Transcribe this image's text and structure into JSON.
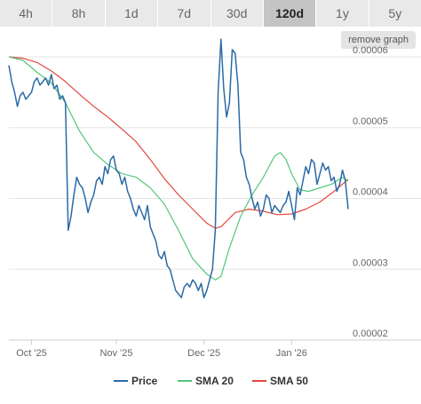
{
  "tabs": [
    {
      "label": "4h",
      "active": false
    },
    {
      "label": "8h",
      "active": false
    },
    {
      "label": "1d",
      "active": false
    },
    {
      "label": "7d",
      "active": false
    },
    {
      "label": "30d",
      "active": false
    },
    {
      "label": "120d",
      "active": true
    },
    {
      "label": "1y",
      "active": false
    },
    {
      "label": "5y",
      "active": false
    }
  ],
  "remove_graph_label": "remove graph",
  "colors": {
    "price": "#2b6aa6",
    "sma20": "#53c77a",
    "sma50": "#e2483f"
  },
  "chart_data": {
    "type": "line",
    "x_ticks": [
      "Oct '25",
      "Nov '25",
      "Dec '25",
      "Jan '26"
    ],
    "y_ticks": [
      "0.00006",
      "0.00005",
      "0.00004",
      "0.00003",
      "0.00002"
    ],
    "ylim": [
      2e-05,
      6e-05
    ],
    "grid": true,
    "legend": "bottom",
    "x_range": [
      0,
      120
    ],
    "x_tick_positions": [
      8,
      38,
      69,
      100
    ],
    "series": [
      {
        "name": "Price",
        "color": "#2b6aa6",
        "points": [
          [
            0,
            5.88e-05
          ],
          [
            1,
            5.65e-05
          ],
          [
            2,
            5.5e-05
          ],
          [
            3,
            5.3e-05
          ],
          [
            4,
            5.45e-05
          ],
          [
            5,
            5.5e-05
          ],
          [
            6,
            5.4e-05
          ],
          [
            7,
            5.45e-05
          ],
          [
            8,
            5.5e-05
          ],
          [
            9,
            5.65e-05
          ],
          [
            10,
            5.7e-05
          ],
          [
            11,
            5.6e-05
          ],
          [
            12,
            5.65e-05
          ],
          [
            13,
            5.7e-05
          ],
          [
            14,
            5.6e-05
          ],
          [
            15,
            5.75e-05
          ],
          [
            16,
            5.55e-05
          ],
          [
            17,
            5.6e-05
          ],
          [
            18,
            5.4e-05
          ],
          [
            19,
            5.45e-05
          ],
          [
            20,
            5.35e-05
          ],
          [
            21,
            3.55e-05
          ],
          [
            22,
            3.75e-05
          ],
          [
            23,
            4.05e-05
          ],
          [
            24,
            4.3e-05
          ],
          [
            25,
            4.2e-05
          ],
          [
            26,
            4.15e-05
          ],
          [
            27,
            4e-05
          ],
          [
            28,
            3.8e-05
          ],
          [
            29,
            3.95e-05
          ],
          [
            30,
            4.05e-05
          ],
          [
            31,
            4.25e-05
          ],
          [
            32,
            4.3e-05
          ],
          [
            33,
            4.2e-05
          ],
          [
            34,
            4.45e-05
          ],
          [
            35,
            4.35e-05
          ],
          [
            36,
            4.55e-05
          ],
          [
            37,
            4.6e-05
          ],
          [
            38,
            4.4e-05
          ],
          [
            39,
            4.35e-05
          ],
          [
            40,
            4.2e-05
          ],
          [
            41,
            4.3e-05
          ],
          [
            42,
            4.1e-05
          ],
          [
            43,
            4e-05
          ],
          [
            44,
            3.85e-05
          ],
          [
            45,
            3.75e-05
          ],
          [
            46,
            3.9e-05
          ],
          [
            47,
            3.8e-05
          ],
          [
            48,
            3.7e-05
          ],
          [
            49,
            3.9e-05
          ],
          [
            50,
            3.6e-05
          ],
          [
            51,
            3.5e-05
          ],
          [
            52,
            3.4e-05
          ],
          [
            53,
            3.2e-05
          ],
          [
            54,
            3.15e-05
          ],
          [
            55,
            3.25e-05
          ],
          [
            56,
            3.05e-05
          ],
          [
            57,
            3e-05
          ],
          [
            58,
            2.85e-05
          ],
          [
            59,
            2.7e-05
          ],
          [
            60,
            2.65e-05
          ],
          [
            61,
            2.6e-05
          ],
          [
            62,
            2.75e-05
          ],
          [
            63,
            2.8e-05
          ],
          [
            64,
            2.75e-05
          ],
          [
            65,
            2.85e-05
          ],
          [
            66,
            2.8e-05
          ],
          [
            67,
            2.7e-05
          ],
          [
            68,
            2.8e-05
          ],
          [
            69,
            2.6e-05
          ],
          [
            70,
            2.7e-05
          ],
          [
            71,
            2.85e-05
          ],
          [
            72,
            3e-05
          ],
          [
            73,
            3.55e-05
          ],
          [
            74,
            5.5e-05
          ],
          [
            75,
            6.25e-05
          ],
          [
            76,
            5.55e-05
          ],
          [
            77,
            5.15e-05
          ],
          [
            78,
            5.35e-05
          ],
          [
            79,
            6.1e-05
          ],
          [
            80,
            6.05e-05
          ],
          [
            81,
            5.6e-05
          ],
          [
            82,
            4.65e-05
          ],
          [
            83,
            4.55e-05
          ],
          [
            84,
            4.3e-05
          ],
          [
            85,
            4.2e-05
          ],
          [
            86,
            4e-05
          ],
          [
            87,
            3.85e-05
          ],
          [
            88,
            3.95e-05
          ],
          [
            89,
            3.75e-05
          ],
          [
            90,
            3.85e-05
          ],
          [
            91,
            4.05e-05
          ],
          [
            92,
            4e-05
          ],
          [
            93,
            3.8e-05
          ],
          [
            94,
            3.9e-05
          ],
          [
            95,
            3.85e-05
          ],
          [
            96,
            3.8e-05
          ],
          [
            97,
            3.9e-05
          ],
          [
            98,
            3.95e-05
          ],
          [
            99,
            4.1e-05
          ],
          [
            100,
            3.9e-05
          ],
          [
            101,
            3.7e-05
          ],
          [
            102,
            4.15e-05
          ],
          [
            103,
            4.05e-05
          ],
          [
            104,
            4.25e-05
          ],
          [
            105,
            4.45e-05
          ],
          [
            106,
            4.35e-05
          ],
          [
            107,
            4.55e-05
          ],
          [
            108,
            4.5e-05
          ],
          [
            109,
            4.2e-05
          ],
          [
            110,
            4.35e-05
          ],
          [
            111,
            4.5e-05
          ],
          [
            112,
            4.4e-05
          ],
          [
            113,
            4.45e-05
          ],
          [
            114,
            4.25e-05
          ],
          [
            115,
            4.3e-05
          ],
          [
            116,
            4.1e-05
          ],
          [
            117,
            4.2e-05
          ],
          [
            118,
            4.4e-05
          ],
          [
            119,
            4.25e-05
          ],
          [
            120,
            3.85e-05
          ]
        ]
      },
      {
        "name": "SMA 20",
        "color": "#53c77a",
        "points": [
          [
            0,
            6e-05
          ],
          [
            5,
            5.95e-05
          ],
          [
            10,
            5.78e-05
          ],
          [
            15,
            5.63e-05
          ],
          [
            20,
            5.35e-05
          ],
          [
            25,
            4.95e-05
          ],
          [
            30,
            4.65e-05
          ],
          [
            35,
            4.48e-05
          ],
          [
            40,
            4.35e-05
          ],
          [
            45,
            4.3e-05
          ],
          [
            50,
            4.15e-05
          ],
          [
            55,
            3.92e-05
          ],
          [
            60,
            3.55e-05
          ],
          [
            65,
            3.15e-05
          ],
          [
            70,
            2.93e-05
          ],
          [
            73,
            2.85e-05
          ],
          [
            75,
            2.9e-05
          ],
          [
            78,
            3.3e-05
          ],
          [
            82,
            3.75e-05
          ],
          [
            86,
            4.05e-05
          ],
          [
            90,
            4.3e-05
          ],
          [
            94,
            4.6e-05
          ],
          [
            96,
            4.65e-05
          ],
          [
            98,
            4.55e-05
          ],
          [
            100,
            4.35e-05
          ],
          [
            103,
            4.12e-05
          ],
          [
            106,
            4.1e-05
          ],
          [
            110,
            4.15e-05
          ],
          [
            114,
            4.2e-05
          ],
          [
            118,
            4.3e-05
          ],
          [
            120,
            4.25e-05
          ]
        ]
      },
      {
        "name": "SMA 50",
        "color": "#e2483f",
        "points": [
          [
            0,
            6e-05
          ],
          [
            5,
            5.98e-05
          ],
          [
            10,
            5.92e-05
          ],
          [
            15,
            5.8e-05
          ],
          [
            20,
            5.65e-05
          ],
          [
            25,
            5.47e-05
          ],
          [
            30,
            5.3e-05
          ],
          [
            35,
            5.15e-05
          ],
          [
            40,
            4.98e-05
          ],
          [
            45,
            4.8e-05
          ],
          [
            50,
            4.55e-05
          ],
          [
            55,
            4.28e-05
          ],
          [
            60,
            4.05e-05
          ],
          [
            65,
            3.85e-05
          ],
          [
            70,
            3.65e-05
          ],
          [
            73,
            3.58e-05
          ],
          [
            75,
            3.6e-05
          ],
          [
            80,
            3.8e-05
          ],
          [
            85,
            3.85e-05
          ],
          [
            90,
            3.82e-05
          ],
          [
            95,
            3.77e-05
          ],
          [
            100,
            3.78e-05
          ],
          [
            105,
            3.85e-05
          ],
          [
            110,
            3.95e-05
          ],
          [
            115,
            4.1e-05
          ],
          [
            120,
            4.27e-05
          ]
        ]
      }
    ]
  }
}
